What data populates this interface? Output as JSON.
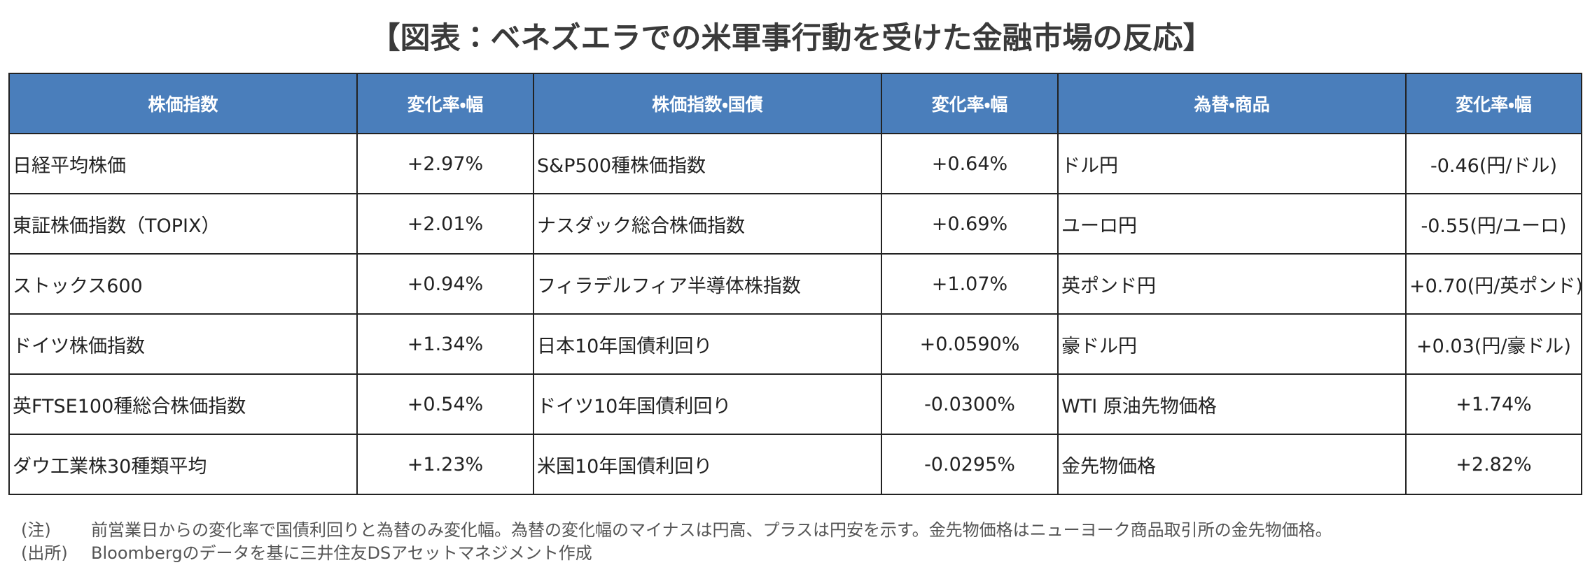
{
  "title": "【図表：ベネズエラでの米軍事行動を受けた金融市場の反応】",
  "table": {
    "header": [
      "株価指数",
      "変化率・幅",
      "株価指数・国債",
      "変化率・幅",
      "為替・商品",
      "変化率・幅"
    ],
    "rows": [
      [
        "日経平均株価",
        "+2.97%",
        "S&P500種株価指数",
        "+0.64%",
        "ドル円",
        "-0.46(円/ドル)"
      ],
      [
        "東証株価指数（TOPIX）",
        "+2.01%",
        "ナスダック総合株価指数",
        "+0.69%",
        "ユーロ円",
        "-0.55(円/ユーロ)"
      ],
      [
        "ストックス600",
        "+0.94%",
        "フィラデルフィア半導体株指数",
        "+1.07%",
        "英ポンド円",
        "+0.70(円/英ポンド)"
      ],
      [
        "ドイツ株価指数",
        "+1.34%",
        "日本10年国債利回り",
        "+0.0590%",
        "豪ドル円",
        "+0.03(円/豪ドル)"
      ],
      [
        "英FTSE100種総合株価指数",
        "+0.54%",
        "ドイツ10年国債利回り",
        "-0.0300%",
        "WTI 原油先物価格",
        "+1.74%"
      ],
      [
        "ダウ工業株30種類平均",
        "+1.23%",
        "米国10年国債利回り",
        "-0.0295%",
        "金先物価格",
        "+2.82%"
      ]
    ]
  },
  "notes": [
    {
      "label": "(注)",
      "text": "前営業日からの変化率で国債利回りと為替のみ変化幅。為替の変化幅のマイナスは円高、プラスは円安を示す。金先物価格はニューヨーク商品取引所の金先物価格。"
    },
    {
      "label": "(出所)",
      "text": "Bloombergのデータを基に三井住友DSアセットマネジメント作成"
    }
  ]
}
